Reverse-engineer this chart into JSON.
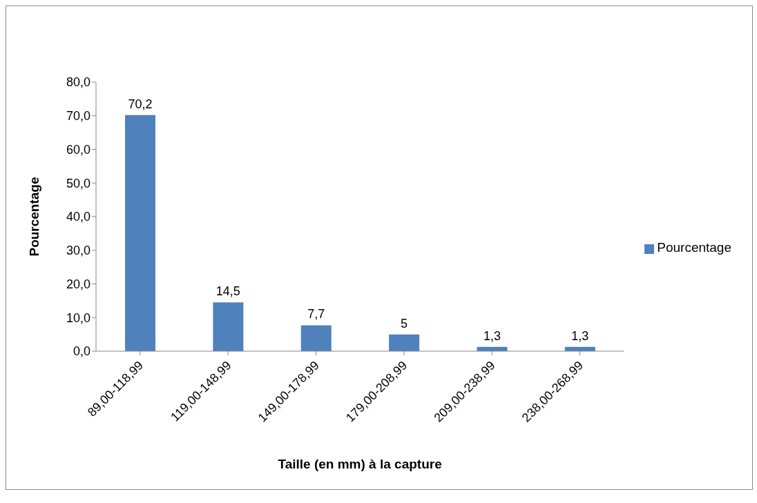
{
  "chart_data": {
    "type": "bar",
    "xlabel": "Taille (en mm) à la capture",
    "ylabel": "Pourcentage",
    "categories": [
      "89,00-118,99",
      "119,00-148,99",
      "149,00-178,99",
      "179,00-208,99",
      "209,00-238,99",
      "238,00-268,99"
    ],
    "series": [
      {
        "name": "Pourcentage",
        "color": "#4f81bd",
        "values": [
          70.2,
          14.5,
          7.7,
          5,
          1.3,
          1.3
        ],
        "value_labels": [
          "70,2",
          "14,5",
          "7,7",
          "5",
          "1,3",
          "1,3"
        ]
      }
    ],
    "ylim": [
      0,
      80
    ],
    "yticks": [
      {
        "value": 0,
        "label": "0,0"
      },
      {
        "value": 10,
        "label": "10,0"
      },
      {
        "value": 20,
        "label": "20,0"
      },
      {
        "value": 30,
        "label": "30,0"
      },
      {
        "value": 40,
        "label": "40,0"
      },
      {
        "value": 50,
        "label": "50,0"
      },
      {
        "value": 60,
        "label": "60,0"
      },
      {
        "value": 70,
        "label": "70,0"
      },
      {
        "value": 80,
        "label": "80,0"
      }
    ],
    "legend": "right"
  }
}
